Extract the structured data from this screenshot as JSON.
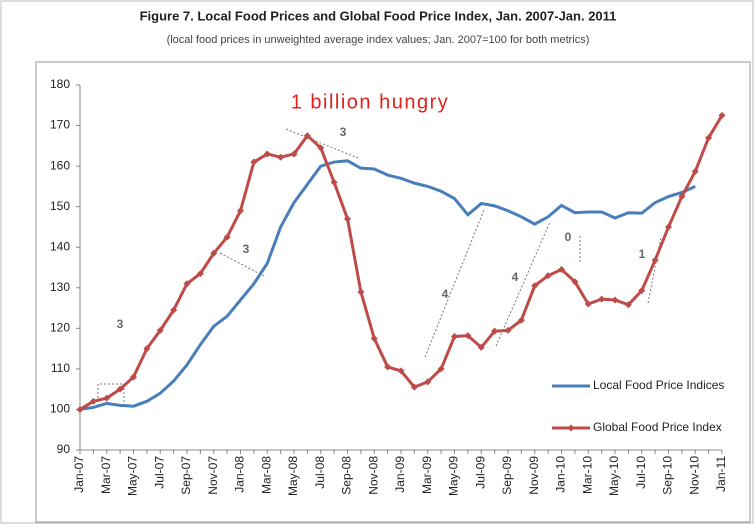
{
  "chart_data": {
    "type": "line",
    "title": "Figure 7. Local Food Prices and Global Food Price Index, Jan. 2007-Jan. 2011",
    "subtitle": "(local food prices in unweighted average index values; Jan. 2007=100 for both metrics)",
    "categories": [
      "Jan-07",
      null,
      "Mar-07",
      null,
      "May-07",
      null,
      "Jul-07",
      null,
      "Sep-07",
      null,
      "Nov-07",
      null,
      "Jan-08",
      null,
      "Mar-08",
      null,
      "May-08",
      null,
      "Jul-08",
      null,
      "Sep-08",
      null,
      "Nov-08",
      null,
      "Jan-09",
      null,
      "Mar-09",
      null,
      "May-09",
      null,
      "Jul-09",
      null,
      "Sep-09",
      null,
      "Nov-09",
      null,
      "Jan-10",
      null,
      "Mar-10",
      null,
      "May-10",
      null,
      "Jul-10",
      null,
      "Sep-10",
      null,
      "Nov-10",
      null,
      "Jan-11"
    ],
    "series": [
      {
        "name": "Local Food Price Indices",
        "color": "#4a7ebb",
        "values": [
          100,
          100.5,
          101.5,
          101,
          100.8,
          102,
          104,
          107,
          111,
          116,
          120.5,
          123,
          127,
          131,
          136,
          145,
          151,
          155.5,
          160,
          161,
          161.3,
          159.5,
          159.3,
          157.8,
          157,
          155.8,
          155,
          153.8,
          152,
          148,
          150.8,
          150.2,
          149,
          147.5,
          145.7,
          147.5,
          150.3,
          148.5,
          148.7,
          148.7,
          147.2,
          148.5,
          148.4,
          151,
          152.5,
          153.5,
          155,
          null,
          null
        ]
      },
      {
        "name": "Global Food Price Index",
        "color": "#be4b48",
        "values": [
          100,
          102,
          102.8,
          105,
          108,
          115,
          119.5,
          124.5,
          131,
          133.5,
          138.5,
          142.5,
          149,
          161,
          163,
          162.2,
          163,
          167.5,
          164.5,
          156,
          147,
          129,
          117.5,
          110.5,
          109.5,
          105.5,
          106.8,
          110,
          118,
          118.2,
          115.3,
          119.3,
          119.5,
          122,
          130.5,
          133,
          134.5,
          131.5,
          126,
          127.2,
          127,
          125.8,
          129.3,
          136.8,
          145,
          152.5,
          158.7,
          167,
          172.5
        ]
      }
    ],
    "ylim": [
      90,
      180
    ],
    "yticks": [
      90,
      100,
      110,
      120,
      130,
      140,
      150,
      160,
      170,
      180
    ],
    "grid": false,
    "legend": "lower right",
    "annotations": [
      "1 billion hungry",
      "3",
      "3",
      "3",
      "4",
      "4",
      "0",
      "1"
    ]
  }
}
